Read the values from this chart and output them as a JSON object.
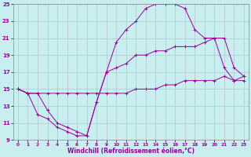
{
  "xlabel": "Windchill (Refroidissement éolien,°C)",
  "xlim": [
    -0.5,
    23.5
  ],
  "ylim": [
    9,
    25
  ],
  "xticks": [
    0,
    1,
    2,
    3,
    4,
    5,
    6,
    7,
    8,
    9,
    10,
    11,
    12,
    13,
    14,
    15,
    16,
    17,
    18,
    19,
    20,
    21,
    22,
    23
  ],
  "yticks": [
    9,
    11,
    13,
    15,
    17,
    19,
    21,
    23,
    25
  ],
  "background_color": "#c8eef0",
  "line_color": "#990099",
  "grid_color": "#b0c8d0",
  "series": [
    {
      "x": [
        0,
        1,
        2,
        3,
        4,
        5,
        6,
        7,
        8,
        9,
        10,
        11,
        12,
        13,
        14,
        15,
        16,
        17,
        18,
        19,
        20,
        21,
        22,
        23
      ],
      "y": [
        15,
        14.5,
        14.5,
        14.5,
        14.5,
        14.5,
        14.5,
        14.5,
        14.5,
        14.5,
        14.5,
        14.5,
        15,
        15,
        15,
        15.5,
        15.5,
        16,
        16,
        16,
        16,
        16.5,
        16,
        16.5
      ]
    },
    {
      "x": [
        0,
        1,
        2,
        3,
        4,
        5,
        6,
        7,
        8,
        9,
        10,
        11,
        12,
        13,
        14,
        15,
        16,
        17,
        18,
        19,
        20,
        21,
        22,
        23
      ],
      "y": [
        15,
        14.5,
        14.5,
        12.5,
        11,
        10.5,
        10,
        9.5,
        13.5,
        17,
        20.5,
        22,
        23,
        24.5,
        25,
        25,
        25,
        24.5,
        22,
        21,
        21,
        17.5,
        16,
        16
      ]
    },
    {
      "x": [
        0,
        1,
        2,
        3,
        4,
        5,
        6,
        7,
        8,
        9,
        10,
        11,
        12,
        13,
        14,
        15,
        16,
        17,
        18,
        19,
        20,
        21,
        22,
        23
      ],
      "y": [
        15,
        14.5,
        12,
        11.5,
        10.5,
        10,
        9.5,
        9.5,
        13.5,
        17,
        17.5,
        18,
        19,
        19,
        19.5,
        19.5,
        20,
        20,
        20,
        20.5,
        21,
        21,
        17.5,
        16.5
      ]
    }
  ]
}
